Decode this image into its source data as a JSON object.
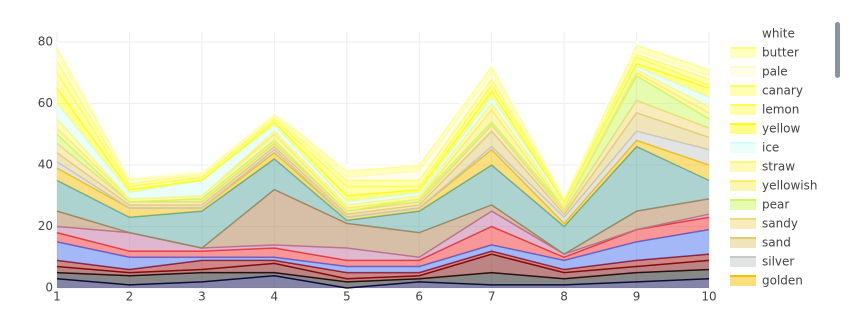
{
  "chart_data": {
    "type": "area",
    "x": [
      1,
      2,
      3,
      4,
      5,
      6,
      7,
      8,
      9,
      10
    ],
    "xlim": [
      1,
      10
    ],
    "xticks": [
      1,
      2,
      3,
      4,
      5,
      6,
      7,
      8,
      9,
      10
    ],
    "ylim": [
      0,
      80
    ],
    "yticks": [
      0,
      20,
      40,
      60,
      80
    ],
    "grid": true,
    "series": [
      {
        "color": "#0a0a50",
        "values": [
          3,
          1,
          2,
          4,
          0,
          2,
          1,
          1,
          2,
          3
        ]
      },
      {
        "color": "#111111",
        "values": [
          5,
          4,
          5,
          5,
          2,
          3,
          5,
          3,
          5,
          6
        ]
      },
      {
        "color": "#7a0a0a",
        "values": [
          7,
          5,
          6,
          8,
          3,
          4,
          11,
          5,
          7,
          9
        ]
      },
      {
        "color": "#a01010",
        "values": [
          9,
          6,
          9,
          9,
          5,
          5,
          12,
          6,
          9,
          11
        ]
      },
      {
        "color": "#4a6ff0",
        "values": [
          15,
          10,
          10,
          10,
          7,
          7,
          14,
          9,
          15,
          19
        ]
      },
      {
        "color": "#f03030",
        "values": [
          18,
          12,
          12,
          13,
          9,
          9,
          20,
          10,
          19,
          23
        ]
      },
      {
        "color": "#c070a0",
        "values": [
          20,
          18,
          13,
          14,
          13,
          10,
          25,
          11,
          19,
          24
        ]
      },
      {
        "color": "#b08050",
        "values": [
          25,
          18,
          13,
          32,
          21,
          18,
          27,
          11,
          25,
          29
        ]
      },
      {
        "color": "#5aa8a0",
        "values": [
          35,
          23,
          25,
          42,
          22,
          25,
          40,
          20,
          46,
          35
        ]
      },
      {
        "name": "golden",
        "color": "#f5bf03",
        "values": [
          39,
          26,
          26,
          44,
          23,
          26,
          45,
          21,
          48,
          40
        ]
      },
      {
        "name": "silver",
        "color": "#c5c9c7",
        "values": [
          41,
          26,
          26,
          45,
          23,
          26,
          46,
          23,
          51,
          45
        ]
      },
      {
        "name": "sand",
        "color": "#e2ca76",
        "values": [
          44,
          27,
          27,
          46,
          24,
          27,
          51,
          24,
          57,
          49
        ]
      },
      {
        "name": "sandy",
        "color": "#f1da7a",
        "values": [
          47,
          28,
          28,
          47,
          25,
          28,
          53,
          25,
          61,
          52
        ]
      },
      {
        "name": "pear",
        "color": "#cbf85f",
        "values": [
          50,
          28,
          29,
          48,
          25,
          29,
          54,
          26,
          69,
          55
        ]
      },
      {
        "name": "yellowish",
        "color": "#faee66",
        "values": [
          52,
          29,
          30,
          50,
          26,
          29,
          58,
          26,
          70,
          57
        ]
      },
      {
        "name": "straw",
        "color": "#fcf679",
        "values": [
          55,
          29,
          30,
          51,
          27,
          30,
          60,
          27,
          71,
          59
        ]
      },
      {
        "name": "ice",
        "color": "#d6fffa",
        "values": [
          60,
          31,
          35,
          53,
          28,
          31,
          62,
          28,
          72,
          62
        ]
      },
      {
        "name": "yellow",
        "color": "#ffff14",
        "values": [
          65,
          32,
          35,
          54,
          30,
          32,
          64,
          28,
          73,
          65
        ]
      },
      {
        "name": "lemon",
        "color": "#fdff52",
        "values": [
          70,
          33,
          36,
          55,
          33,
          33,
          66,
          29,
          75,
          66
        ]
      },
      {
        "name": "canary",
        "color": "#fdff63",
        "values": [
          74,
          34,
          37,
          56,
          35,
          35,
          68,
          29,
          76,
          68
        ]
      },
      {
        "name": "pale",
        "color": "#fff9d0",
        "values": [
          76,
          35,
          37,
          56,
          36,
          38,
          70,
          29,
          77,
          69
        ]
      },
      {
        "name": "butter",
        "color": "#ffff81",
        "values": [
          78,
          36,
          38,
          57,
          38,
          40,
          72,
          30,
          79,
          71
        ]
      },
      {
        "name": "white",
        "color": "#ffffff",
        "values": [
          80,
          36,
          38,
          57,
          40,
          43,
          73,
          30,
          80,
          72
        ]
      }
    ]
  }
}
